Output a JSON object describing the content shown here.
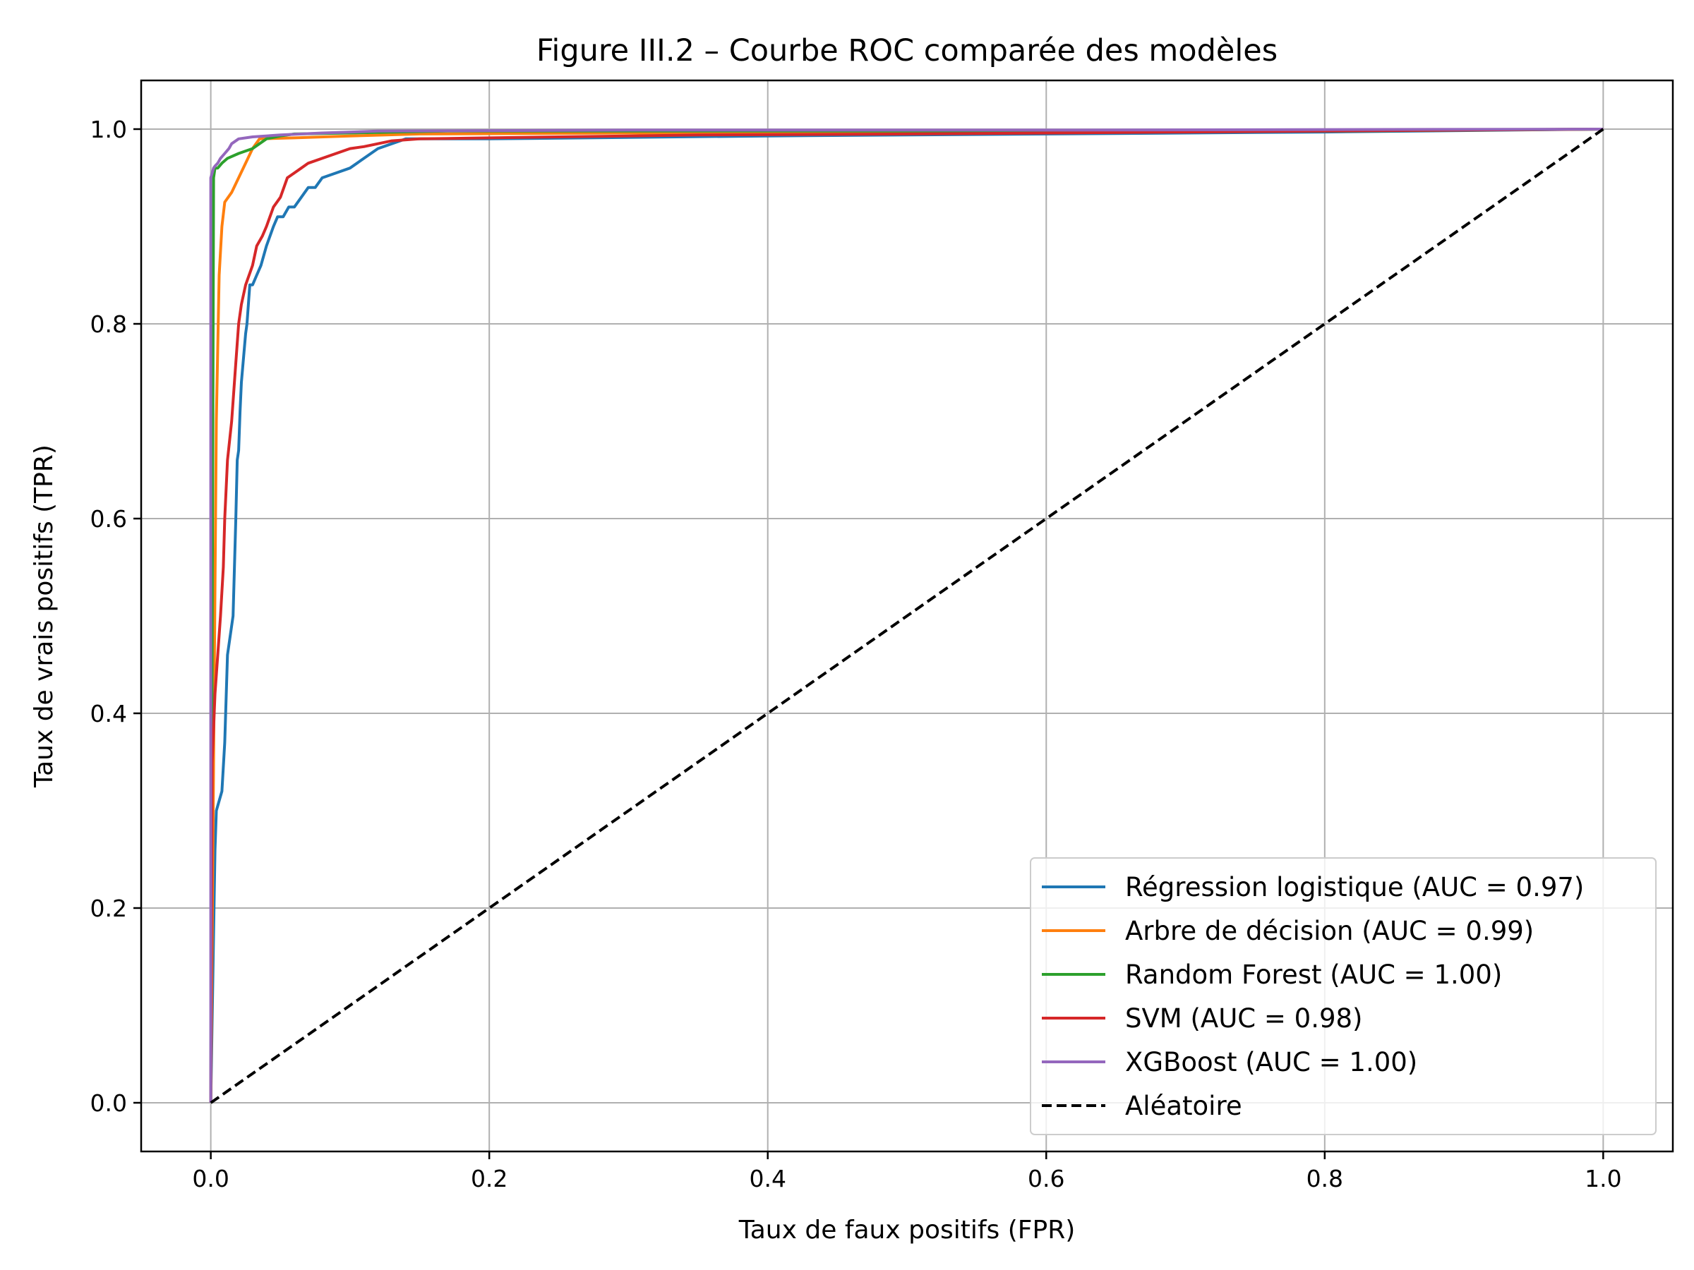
{
  "chart_data": {
    "type": "line",
    "title": "Figure III.2 – Courbe ROC comparée des modèles",
    "xlabel": "Taux de faux positifs (FPR)",
    "ylabel": "Taux de vrais positifs (TPR)",
    "xlim": [
      -0.05,
      1.05
    ],
    "ylim": [
      -0.05,
      1.05
    ],
    "xticks": [
      0.0,
      0.2,
      0.4,
      0.6,
      0.8,
      1.0
    ],
    "xtick_labels": [
      "0.0",
      "0.2",
      "0.4",
      "0.6",
      "0.8",
      "1.0"
    ],
    "yticks": [
      0.0,
      0.2,
      0.4,
      0.6,
      0.8,
      1.0
    ],
    "ytick_labels": [
      "0.0",
      "0.2",
      "0.4",
      "0.6",
      "0.8",
      "1.0"
    ],
    "grid": true,
    "legend_position": "lower-right",
    "series": [
      {
        "name": "Régression logistique (AUC = 0.97)",
        "color": "#1f77b4",
        "x": [
          0.0,
          0.003,
          0.004,
          0.008,
          0.01,
          0.012,
          0.016,
          0.018,
          0.019,
          0.02,
          0.021,
          0.022,
          0.025,
          0.026,
          0.028,
          0.03,
          0.033,
          0.036,
          0.04,
          0.045,
          0.048,
          0.052,
          0.056,
          0.06,
          0.065,
          0.07,
          0.075,
          0.08,
          0.09,
          0.1,
          0.11,
          0.115,
          0.12,
          0.13,
          0.14,
          0.15,
          0.2,
          0.4,
          0.8,
          1.0
        ],
        "y": [
          0.0,
          0.26,
          0.3,
          0.32,
          0.37,
          0.46,
          0.5,
          0.6,
          0.66,
          0.67,
          0.71,
          0.74,
          0.79,
          0.8,
          0.84,
          0.84,
          0.85,
          0.86,
          0.88,
          0.9,
          0.91,
          0.91,
          0.92,
          0.92,
          0.93,
          0.94,
          0.94,
          0.95,
          0.955,
          0.96,
          0.97,
          0.975,
          0.98,
          0.985,
          0.99,
          0.99,
          0.99,
          0.993,
          0.997,
          1.0
        ]
      },
      {
        "name": "Arbre de décision (AUC = 0.99)",
        "color": "#ff7f0e",
        "x": [
          0.0,
          0.002,
          0.004,
          0.006,
          0.008,
          0.01,
          0.015,
          0.02,
          0.025,
          0.03,
          0.035,
          0.06,
          0.1,
          0.15,
          0.3,
          0.6,
          1.0
        ],
        "y": [
          0.0,
          0.35,
          0.7,
          0.85,
          0.9,
          0.925,
          0.935,
          0.95,
          0.965,
          0.98,
          0.99,
          0.991,
          0.993,
          0.995,
          0.996,
          0.997,
          1.0
        ]
      },
      {
        "name": "Random Forest (AUC = 1.00)",
        "color": "#2ca02c",
        "x": [
          0.0,
          0.002,
          0.003,
          0.005,
          0.008,
          0.012,
          0.02,
          0.03,
          0.04,
          0.05,
          0.06,
          0.1,
          0.17,
          0.4,
          0.81,
          1.0
        ],
        "y": [
          0.0,
          0.95,
          0.96,
          0.96,
          0.965,
          0.97,
          0.975,
          0.98,
          0.99,
          0.993,
          0.995,
          0.996,
          0.998,
          0.998,
          0.998,
          1.0
        ]
      },
      {
        "name": "SVM (AUC = 0.98)",
        "color": "#d62728",
        "x": [
          0.0,
          0.001,
          0.003,
          0.005,
          0.007,
          0.009,
          0.01,
          0.012,
          0.015,
          0.018,
          0.02,
          0.022,
          0.025,
          0.03,
          0.033,
          0.037,
          0.04,
          0.045,
          0.05,
          0.055,
          0.06,
          0.065,
          0.07,
          0.08,
          0.09,
          0.1,
          0.11,
          0.12,
          0.13,
          0.15,
          0.2,
          0.25,
          0.3,
          0.35,
          0.5,
          0.7,
          1.0
        ],
        "y": [
          0.0,
          0.35,
          0.42,
          0.46,
          0.5,
          0.55,
          0.6,
          0.66,
          0.7,
          0.76,
          0.8,
          0.82,
          0.84,
          0.86,
          0.88,
          0.89,
          0.9,
          0.92,
          0.93,
          0.95,
          0.955,
          0.96,
          0.965,
          0.97,
          0.975,
          0.98,
          0.982,
          0.985,
          0.988,
          0.99,
          0.991,
          0.992,
          0.993,
          0.994,
          0.995,
          0.997,
          1.0
        ]
      },
      {
        "name": "XGBoost (AUC = 1.00)",
        "color": "#9467bd",
        "x": [
          0.0,
          0.0,
          0.002,
          0.003,
          0.005,
          0.007,
          0.01,
          0.013,
          0.015,
          0.02,
          0.03,
          0.05,
          0.08,
          0.12,
          0.3,
          0.6,
          1.0
        ],
        "y": [
          0.0,
          0.95,
          0.96,
          0.962,
          0.965,
          0.97,
          0.975,
          0.98,
          0.985,
          0.99,
          0.992,
          0.994,
          0.996,
          0.998,
          0.999,
          0.999,
          1.0
        ]
      },
      {
        "name": "Aléatoire",
        "color": "#000000",
        "dashed": true,
        "x": [
          0.0,
          1.0
        ],
        "y": [
          0.0,
          1.0
        ]
      }
    ]
  }
}
